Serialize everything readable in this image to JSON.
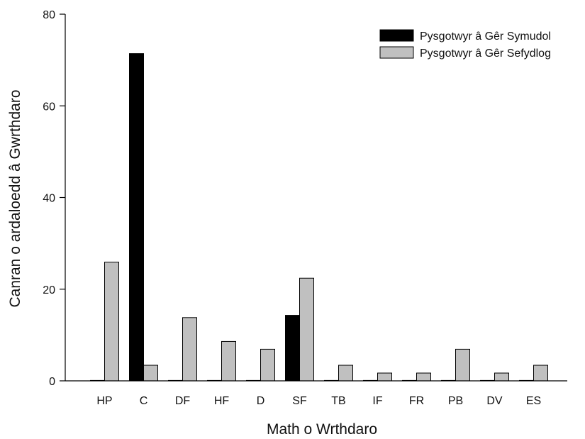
{
  "chart_data": {
    "type": "bar",
    "title": "",
    "xlabel": "Math o Wrthdaro",
    "ylabel": "Canran o ardaloedd â Gwrthdaro",
    "ylim": [
      0,
      80
    ],
    "yticks": [
      0,
      20,
      40,
      60,
      80
    ],
    "grid": false,
    "legend_position": "top-right",
    "categories": [
      "HP",
      "C",
      "DF",
      "HF",
      "D",
      "SF",
      "TB",
      "IF",
      "FR",
      "PB",
      "DV",
      "ES"
    ],
    "series": [
      {
        "name": "Pysgotwyr â Gêr Symudol",
        "color": "#000000",
        "values": [
          0,
          71.4,
          0,
          0,
          0,
          14.3,
          0,
          0,
          0,
          0,
          0,
          0
        ]
      },
      {
        "name": "Pysgotwyr â Gêr Sefydlog",
        "color": "#c0c0c0",
        "values": [
          25.9,
          3.4,
          13.8,
          8.6,
          6.9,
          22.4,
          3.4,
          1.7,
          1.7,
          6.9,
          1.7,
          3.4
        ]
      }
    ]
  }
}
